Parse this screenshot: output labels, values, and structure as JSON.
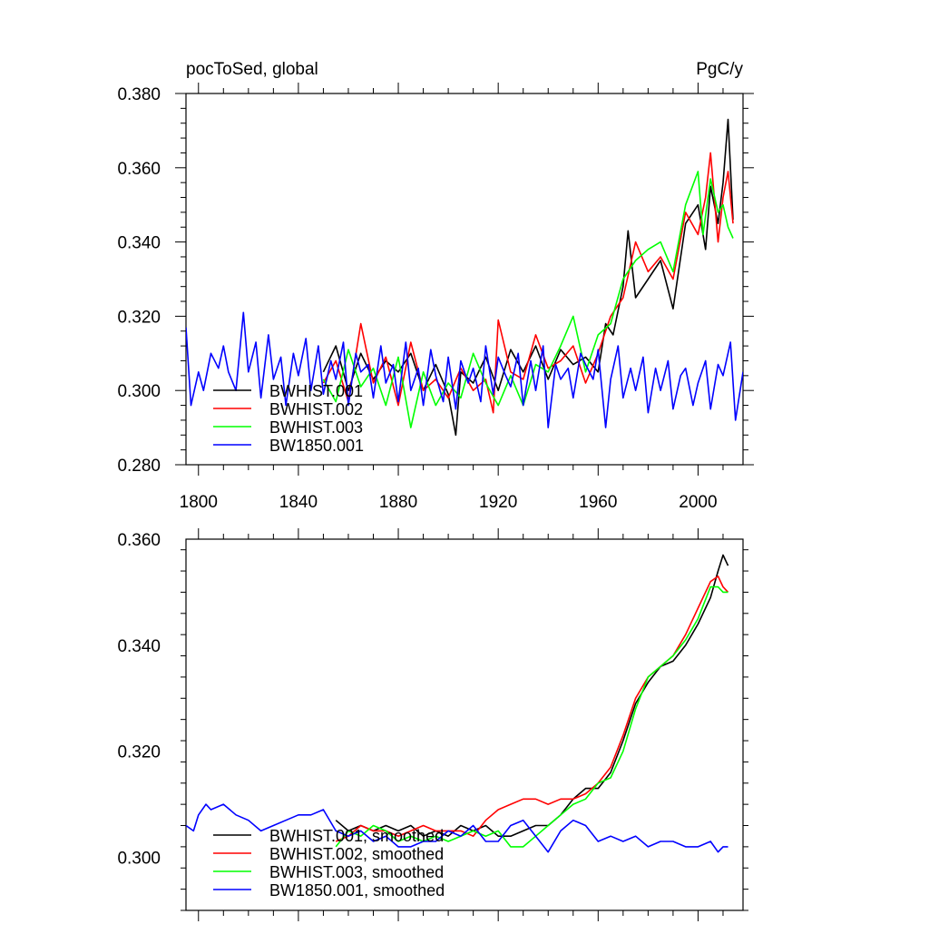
{
  "chart_data": [
    {
      "type": "line",
      "title": "pocToSed, global",
      "units": "PgC/y",
      "xlim": [
        1795,
        2018
      ],
      "ylim": [
        0.28,
        0.38
      ],
      "x_ticks": [
        1800,
        1840,
        1880,
        1920,
        1960,
        2000
      ],
      "y_ticks": [
        0.28,
        0.3,
        0.32,
        0.34,
        0.36,
        0.38
      ],
      "y_tick_labels": [
        "0.280",
        "0.300",
        "0.320",
        "0.340",
        "0.360",
        "0.380"
      ],
      "x_tick_labels": [
        "1800",
        "1840",
        "1880",
        "1920",
        "1960",
        "2000"
      ],
      "legend_position": "bottom-left",
      "series": [
        {
          "name": "BWHIST.001",
          "color": "#000000",
          "x": [
            1850,
            1855,
            1860,
            1865,
            1870,
            1875,
            1880,
            1885,
            1890,
            1895,
            1900,
            1903,
            1905,
            1910,
            1915,
            1920,
            1925,
            1930,
            1935,
            1940,
            1945,
            1950,
            1955,
            1960,
            1963,
            1966,
            1970,
            1972,
            1975,
            1980,
            1985,
            1990,
            1995,
            2000,
            2003,
            2005,
            2008,
            2010,
            2012,
            2014
          ],
          "y": [
            0.305,
            0.312,
            0.3,
            0.31,
            0.303,
            0.308,
            0.305,
            0.31,
            0.3,
            0.307,
            0.299,
            0.288,
            0.305,
            0.302,
            0.309,
            0.3,
            0.311,
            0.305,
            0.312,
            0.303,
            0.311,
            0.307,
            0.309,
            0.305,
            0.318,
            0.315,
            0.328,
            0.343,
            0.325,
            0.33,
            0.335,
            0.322,
            0.345,
            0.35,
            0.338,
            0.355,
            0.345,
            0.356,
            0.373,
            0.346
          ]
        },
        {
          "name": "BWHIST.002",
          "color": "#ff0000",
          "x": [
            1850,
            1855,
            1860,
            1865,
            1870,
            1875,
            1880,
            1885,
            1890,
            1895,
            1900,
            1905,
            1910,
            1915,
            1918,
            1920,
            1925,
            1930,
            1935,
            1940,
            1945,
            1950,
            1955,
            1960,
            1965,
            1970,
            1975,
            1980,
            1985,
            1990,
            1995,
            2000,
            2003,
            2005,
            2008,
            2010,
            2012,
            2014
          ],
          "y": [
            0.302,
            0.308,
            0.297,
            0.318,
            0.302,
            0.309,
            0.296,
            0.313,
            0.3,
            0.303,
            0.298,
            0.306,
            0.3,
            0.303,
            0.294,
            0.319,
            0.305,
            0.303,
            0.315,
            0.306,
            0.308,
            0.312,
            0.302,
            0.31,
            0.32,
            0.325,
            0.34,
            0.332,
            0.336,
            0.33,
            0.348,
            0.342,
            0.352,
            0.364,
            0.34,
            0.352,
            0.359,
            0.345
          ]
        },
        {
          "name": "BWHIST.003",
          "color": "#00ff00",
          "x": [
            1850,
            1855,
            1860,
            1865,
            1870,
            1875,
            1880,
            1885,
            1890,
            1895,
            1900,
            1905,
            1910,
            1915,
            1920,
            1925,
            1930,
            1935,
            1940,
            1945,
            1950,
            1955,
            1960,
            1965,
            1970,
            1975,
            1980,
            1985,
            1990,
            1995,
            2000,
            2002,
            2005,
            2008,
            2010,
            2012,
            2014
          ],
          "y": [
            0.303,
            0.297,
            0.311,
            0.301,
            0.306,
            0.296,
            0.309,
            0.29,
            0.305,
            0.296,
            0.302,
            0.298,
            0.31,
            0.302,
            0.296,
            0.304,
            0.296,
            0.307,
            0.305,
            0.312,
            0.32,
            0.305,
            0.315,
            0.318,
            0.33,
            0.335,
            0.338,
            0.34,
            0.332,
            0.35,
            0.359,
            0.342,
            0.357,
            0.348,
            0.35,
            0.344,
            0.341
          ]
        },
        {
          "name": "BW1850.001",
          "color": "#0000ff",
          "x": [
            1795,
            1797,
            1800,
            1802,
            1805,
            1808,
            1810,
            1812,
            1815,
            1818,
            1820,
            1823,
            1825,
            1828,
            1830,
            1833,
            1835,
            1838,
            1840,
            1843,
            1845,
            1848,
            1850,
            1853,
            1855,
            1858,
            1860,
            1863,
            1865,
            1868,
            1870,
            1873,
            1875,
            1878,
            1880,
            1883,
            1885,
            1888,
            1890,
            1893,
            1895,
            1898,
            1900,
            1903,
            1905,
            1908,
            1910,
            1913,
            1915,
            1918,
            1920,
            1923,
            1925,
            1928,
            1930,
            1933,
            1935,
            1938,
            1940,
            1943,
            1945,
            1948,
            1950,
            1953,
            1955,
            1958,
            1960,
            1963,
            1965,
            1968,
            1970,
            1973,
            1975,
            1978,
            1980,
            1983,
            1985,
            1988,
            1990,
            1993,
            1995,
            1998,
            2000,
            2003,
            2005,
            2008,
            2010,
            2013,
            2015,
            2018
          ],
          "y": [
            0.317,
            0.296,
            0.305,
            0.3,
            0.31,
            0.306,
            0.312,
            0.305,
            0.3,
            0.321,
            0.305,
            0.313,
            0.298,
            0.315,
            0.303,
            0.309,
            0.296,
            0.31,
            0.304,
            0.314,
            0.3,
            0.312,
            0.299,
            0.308,
            0.303,
            0.313,
            0.296,
            0.31,
            0.305,
            0.307,
            0.298,
            0.312,
            0.302,
            0.307,
            0.297,
            0.313,
            0.3,
            0.306,
            0.296,
            0.311,
            0.304,
            0.297,
            0.309,
            0.295,
            0.308,
            0.302,
            0.306,
            0.297,
            0.312,
            0.299,
            0.309,
            0.304,
            0.301,
            0.31,
            0.296,
            0.308,
            0.3,
            0.312,
            0.29,
            0.307,
            0.303,
            0.306,
            0.298,
            0.31,
            0.307,
            0.303,
            0.311,
            0.29,
            0.303,
            0.312,
            0.298,
            0.306,
            0.3,
            0.309,
            0.294,
            0.306,
            0.3,
            0.308,
            0.295,
            0.304,
            0.306,
            0.296,
            0.302,
            0.308,
            0.295,
            0.307,
            0.304,
            0.313,
            0.292,
            0.305
          ]
        }
      ]
    },
    {
      "type": "line",
      "title": "",
      "xlim": [
        1795,
        2018
      ],
      "ylim": [
        0.29,
        0.36
      ],
      "x_ticks": [
        1800,
        1840,
        1880,
        1920,
        1960,
        2000
      ],
      "y_ticks": [
        0.3,
        0.32,
        0.34,
        0.36
      ],
      "y_tick_labels": [
        "0.300",
        "0.320",
        "0.340",
        "0.360"
      ],
      "legend_position": "bottom-left",
      "series": [
        {
          "name": "BWHIST.001, smoothed",
          "color": "#000000",
          "x": [
            1855,
            1860,
            1865,
            1870,
            1875,
            1880,
            1885,
            1890,
            1895,
            1900,
            1905,
            1910,
            1915,
            1920,
            1925,
            1930,
            1935,
            1940,
            1945,
            1950,
            1955,
            1960,
            1965,
            1970,
            1975,
            1980,
            1985,
            1990,
            1995,
            2000,
            2005,
            2008,
            2010,
            2012
          ],
          "y": [
            0.307,
            0.305,
            0.306,
            0.305,
            0.306,
            0.305,
            0.306,
            0.304,
            0.305,
            0.304,
            0.306,
            0.305,
            0.306,
            0.304,
            0.304,
            0.305,
            0.306,
            0.306,
            0.308,
            0.311,
            0.313,
            0.313,
            0.316,
            0.322,
            0.329,
            0.333,
            0.336,
            0.337,
            0.34,
            0.344,
            0.349,
            0.354,
            0.357,
            0.355
          ]
        },
        {
          "name": "BWHIST.002, smoothed",
          "color": "#ff0000",
          "x": [
            1855,
            1860,
            1865,
            1870,
            1875,
            1880,
            1885,
            1890,
            1895,
            1900,
            1905,
            1910,
            1915,
            1920,
            1925,
            1930,
            1935,
            1940,
            1945,
            1950,
            1955,
            1960,
            1965,
            1970,
            1975,
            1980,
            1985,
            1990,
            1995,
            2000,
            2005,
            2008,
            2010,
            2012
          ],
          "y": [
            0.303,
            0.304,
            0.306,
            0.305,
            0.305,
            0.304,
            0.305,
            0.306,
            0.305,
            0.305,
            0.305,
            0.304,
            0.307,
            0.309,
            0.31,
            0.311,
            0.311,
            0.31,
            0.311,
            0.311,
            0.312,
            0.314,
            0.317,
            0.323,
            0.33,
            0.334,
            0.336,
            0.338,
            0.342,
            0.347,
            0.352,
            0.353,
            0.351,
            0.35
          ]
        },
        {
          "name": "BWHIST.003, smoothed",
          "color": "#00ff00",
          "x": [
            1855,
            1860,
            1865,
            1870,
            1875,
            1880,
            1885,
            1890,
            1895,
            1900,
            1905,
            1910,
            1915,
            1920,
            1925,
            1930,
            1935,
            1940,
            1945,
            1950,
            1955,
            1960,
            1965,
            1970,
            1975,
            1980,
            1985,
            1990,
            1995,
            2000,
            2005,
            2008,
            2010,
            2012
          ],
          "y": [
            0.302,
            0.305,
            0.304,
            0.306,
            0.305,
            0.303,
            0.304,
            0.303,
            0.304,
            0.303,
            0.304,
            0.305,
            0.304,
            0.305,
            0.302,
            0.302,
            0.304,
            0.306,
            0.308,
            0.31,
            0.311,
            0.314,
            0.315,
            0.32,
            0.328,
            0.334,
            0.336,
            0.338,
            0.341,
            0.345,
            0.351,
            0.351,
            0.35,
            0.35
          ]
        },
        {
          "name": "BW1850.001, smoothed",
          "color": "#0000ff",
          "x": [
            1795,
            1798,
            1800,
            1803,
            1805,
            1810,
            1815,
            1820,
            1825,
            1830,
            1835,
            1840,
            1845,
            1850,
            1855,
            1860,
            1865,
            1870,
            1875,
            1880,
            1885,
            1890,
            1895,
            1900,
            1905,
            1910,
            1915,
            1920,
            1925,
            1930,
            1935,
            1940,
            1945,
            1950,
            1955,
            1960,
            1965,
            1970,
            1975,
            1980,
            1985,
            1990,
            1995,
            2000,
            2005,
            2008,
            2010,
            2012
          ],
          "y": [
            0.306,
            0.305,
            0.308,
            0.31,
            0.309,
            0.31,
            0.308,
            0.307,
            0.305,
            0.306,
            0.307,
            0.308,
            0.308,
            0.309,
            0.305,
            0.304,
            0.305,
            0.303,
            0.304,
            0.302,
            0.302,
            0.303,
            0.303,
            0.305,
            0.304,
            0.306,
            0.303,
            0.303,
            0.306,
            0.307,
            0.304,
            0.301,
            0.305,
            0.307,
            0.306,
            0.303,
            0.304,
            0.303,
            0.304,
            0.302,
            0.303,
            0.303,
            0.302,
            0.302,
            0.303,
            0.301,
            0.302,
            0.302
          ]
        }
      ]
    }
  ]
}
